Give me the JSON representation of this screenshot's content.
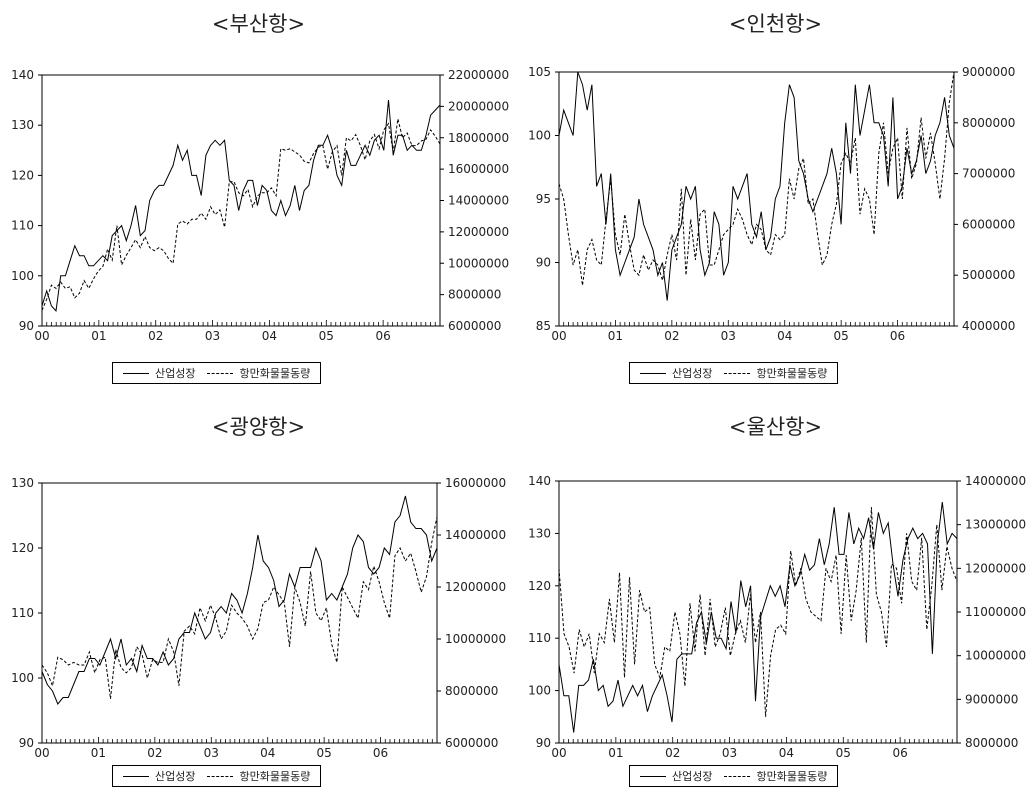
{
  "charts": [
    {
      "title": "<부산항>",
      "legend": {
        "s1": "산업성장",
        "s2": "항만화물물동량"
      },
      "chart_data": {
        "type": "line",
        "x_ticks": [
          "00",
          "01",
          "02",
          "03",
          "04",
          "05",
          "06"
        ],
        "left_axis": {
          "min": 90,
          "max": 140,
          "ticks": [
            "90",
            "100",
            "110",
            "120",
            "130",
            "140"
          ]
        },
        "right_axis": {
          "min": 6000000,
          "max": 22000000,
          "ticks": [
            "6000000",
            "8000000",
            "10000000",
            "12000000",
            "14000000",
            "16000000",
            "18000000",
            "20000000",
            "22000000"
          ]
        },
        "series": [
          {
            "name": "산업성장",
            "axis": "left",
            "style": "solid",
            "values": [
              94,
              97,
              94,
              93,
              100,
              100,
              103,
              106,
              104,
              104,
              102,
              102,
              103,
              104,
              103,
              108,
              109,
              110,
              107,
              110,
              114,
              108,
              109,
              115,
              117,
              118,
              118,
              120,
              122,
              126,
              123,
              125,
              120,
              120,
              116,
              124,
              126,
              127,
              126,
              127,
              119,
              118,
              113,
              117,
              119,
              119,
              114,
              118,
              117,
              113,
              112,
              115,
              112,
              114,
              118,
              113,
              117,
              118,
              123,
              126,
              126,
              128,
              125,
              120,
              118,
              125,
              122,
              122,
              124,
              126,
              124,
              127,
              128,
              125,
              135,
              124,
              128,
              128,
              125,
              126,
              125,
              125,
              128,
              132,
              133,
              134
            ]
          },
          {
            "name": "항만화물물동량",
            "axis": "right",
            "style": "dashed",
            "values": [
              7.0,
              7.7,
              8.6,
              8.4,
              8.8,
              8.4,
              8.5,
              7.8,
              8.1,
              8.9,
              8.4,
              9.0,
              9.5,
              9.8,
              10.9,
              10.2,
              12.4,
              9.9,
              10.5,
              11.0,
              11.5,
              11.0,
              11.7,
              11.0,
              10.8,
              11.0,
              10.8,
              10.3,
              10.0,
              12.5,
              12.7,
              12.5,
              12.8,
              12.8,
              13.2,
              12.8,
              13.6,
              13.1,
              13.4,
              12.3,
              15.2,
              15.2,
              14.5,
              14.3,
              14.7,
              13.6,
              14.3,
              14.5,
              14.5,
              14.8,
              14.3,
              17.3,
              17.2,
              17.3,
              17.1,
              16.9,
              16.5,
              16.4,
              17.0,
              17.4,
              17.5,
              16.0,
              17.1,
              17.5,
              15.6,
              18.0,
              17.8,
              18.2,
              17.5,
              16.6,
              17.8,
              18.2,
              17.3,
              18.5,
              18.9,
              17.1,
              19.2,
              18.0,
              18.3,
              17.5,
              17.5,
              17.8,
              17.9,
              18.5,
              18.1,
              17.6
            ]
          }
        ]
      }
    },
    {
      "title": "<인천항>",
      "legend": {
        "s1": "산업성장",
        "s2": "항만화물물동량"
      },
      "chart_data": {
        "type": "line",
        "x_ticks": [
          "00",
          "01",
          "02",
          "03",
          "04",
          "05",
          "06"
        ],
        "left_axis": {
          "min": 85,
          "max": 105,
          "ticks": [
            "85",
            "90",
            "95",
            "100",
            "105"
          ]
        },
        "right_axis": {
          "min": 4000000,
          "max": 9000000,
          "ticks": [
            "4000000",
            "5000000",
            "6000000",
            "7000000",
            "8000000",
            "9000000"
          ]
        },
        "series": [
          {
            "name": "산업성장",
            "axis": "left",
            "style": "solid",
            "values": [
              100,
              102,
              101,
              100,
              105,
              104,
              102,
              104,
              96,
              97,
              93,
              97,
              91,
              89,
              90,
              91,
              92,
              95,
              93,
              92,
              91,
              89,
              90,
              87,
              91,
              92,
              93,
              96,
              95,
              96,
              91,
              89,
              90,
              94,
              93,
              89,
              90,
              96,
              95,
              96,
              97,
              93,
              92,
              94,
              91,
              92,
              95,
              96,
              101,
              104,
              103,
              98,
              97,
              95,
              94,
              95,
              96,
              97,
              99,
              97,
              93,
              101,
              97,
              104,
              100,
              102,
              104,
              101,
              101,
              100,
              96,
              103,
              95,
              96,
              99,
              97,
              98,
              100,
              97,
              98,
              100,
              101,
              103,
              100,
              99
            ]
          },
          {
            "name": "항만화물물동량",
            "axis": "right",
            "style": "dashed",
            "values": [
              6.8,
              6.5,
              5.8,
              5.2,
              5.5,
              4.8,
              5.5,
              5.7,
              5.3,
              5.2,
              6.1,
              6.9,
              5.8,
              5.4,
              6.2,
              5.6,
              5.1,
              5.0,
              5.4,
              5.1,
              5.3,
              5.2,
              4.9,
              5.4,
              5.8,
              5.3,
              6.7,
              5.0,
              6.1,
              5.3,
              6.2,
              6.3,
              5.2,
              5.2,
              5.5,
              5.8,
              5.9,
              6.0,
              6.3,
              6.1,
              5.8,
              5.6,
              6.0,
              5.9,
              5.5,
              5.4,
              5.8,
              5.7,
              5.8,
              6.9,
              6.5,
              7.1,
              7.3,
              6.4,
              6.5,
              5.8,
              5.2,
              5.4,
              6.0,
              6.4,
              7.2,
              7.4,
              7.2,
              7.7,
              6.2,
              6.7,
              6.5,
              5.8,
              7.4,
              8.0,
              7.0,
              7.5,
              7.7,
              6.5,
              7.9,
              6.9,
              7.2,
              8.1,
              7.3,
              7.8,
              7.2,
              6.5,
              7.3,
              8.4,
              9.0
            ]
          }
        ]
      }
    },
    {
      "title": "<광양항>",
      "legend": {
        "s1": "산업성장",
        "s2": "항만화물물동량"
      },
      "chart_data": {
        "type": "line",
        "x_ticks": [
          "00",
          "01",
          "02",
          "03",
          "04",
          "05",
          "06"
        ],
        "left_axis": {
          "min": 90,
          "max": 130,
          "ticks": [
            "90",
            "100",
            "110",
            "120",
            "130"
          ]
        },
        "right_axis": {
          "min": 6000000,
          "max": 16000000,
          "ticks": [
            "6000000",
            "8000000",
            "10000000",
            "12000000",
            "14000000",
            "16000000"
          ]
        },
        "series": [
          {
            "name": "산업성장",
            "axis": "left",
            "style": "solid",
            "values": [
              101,
              99,
              98,
              96,
              97,
              97,
              99,
              101,
              101,
              103,
              103,
              102,
              104,
              106,
              103,
              106,
              102,
              103,
              101,
              105,
              103,
              103,
              102,
              104,
              102,
              103,
              106,
              107,
              107,
              110,
              108,
              106,
              107,
              110,
              111,
              110,
              113,
              112,
              110,
              113,
              117,
              122,
              118,
              117,
              115,
              111,
              112,
              116,
              114,
              117,
              117,
              117,
              120,
              118,
              112,
              113,
              112,
              114,
              116,
              120,
              122,
              121,
              117,
              116,
              117,
              120,
              119,
              124,
              125,
              128,
              124,
              123,
              123,
              122,
              118,
              120
            ]
          },
          {
            "name": "항만화물물동량",
            "axis": "right",
            "style": "dashed",
            "values": [
              9.0,
              8.7,
              8.2,
              9.3,
              9.2,
              9.0,
              9.1,
              9.0,
              9.0,
              9.5,
              8.7,
              9.2,
              9.3,
              7.7,
              9.6,
              8.9,
              8.7,
              8.9,
              9.7,
              9.4,
              8.5,
              9.2,
              9.1,
              9.1,
              10.0,
              9.5,
              8.2,
              10.3,
              10.5,
              10.2,
              11.2,
              10.7,
              11.3,
              10.8,
              10.0,
              10.3,
              11.3,
              11.0,
              10.8,
              10.5,
              10.0,
              10.4,
              11.4,
              11.5,
              12.0,
              11.7,
              11.4,
              9.7,
              12.0,
              11.4,
              10.5,
              12.6,
              11.0,
              10.7,
              11.2,
              9.8,
              9.1,
              12.0,
              11.6,
              11.2,
              10.8,
              12.2,
              11.9,
              12.8,
              12.2,
              11.4,
              10.8,
              13.2,
              13.5,
              13.0,
              13.3,
              12.6,
              11.8,
              12.4,
              13.7,
              14.7
            ]
          }
        ]
      }
    },
    {
      "title": "<울산항>",
      "legend": {
        "s1": "산업성장",
        "s2": "항만화물물동량"
      },
      "chart_data": {
        "type": "line",
        "x_ticks": [
          "00",
          "01",
          "02",
          "03",
          "04",
          "05",
          "06"
        ],
        "left_axis": {
          "min": 90,
          "max": 140,
          "ticks": [
            "90",
            "100",
            "110",
            "120",
            "130",
            "140"
          ]
        },
        "right_axis": {
          "min": 8000000,
          "max": 14000000,
          "ticks": [
            "8000000",
            "9000000",
            "10000000",
            "11000000",
            "12000000",
            "13000000",
            "14000000"
          ]
        },
        "series": [
          {
            "name": "산업성장",
            "axis": "left",
            "style": "solid",
            "values": [
              105,
              99,
              99,
              92,
              101,
              101,
              102,
              106,
              100,
              101,
              97,
              98,
              102,
              97,
              99,
              101,
              99,
              101,
              96,
              99,
              101,
              103,
              99,
              94,
              106,
              107,
              107,
              107,
              113,
              115,
              109,
              115,
              110,
              110,
              108,
              117,
              111,
              121,
              116,
              120,
              98,
              114,
              117,
              120,
              118,
              120,
              116,
              124,
              120,
              122,
              126,
              123,
              124,
              129,
              124,
              128,
              135,
              126,
              126,
              134,
              128,
              131,
              129,
              133,
              127,
              134,
              130,
              132,
              124,
              118,
              125,
              129,
              131,
              129,
              130,
              128,
              107,
              128,
              136,
              128,
              130,
              129
            ]
          },
          {
            "name": "항만화물물동량",
            "axis": "right",
            "style": "dashed",
            "values": [
              12.0,
              10.5,
              10.2,
              9.6,
              10.6,
              10.2,
              10.5,
              9.6,
              10.5,
              10.3,
              11.3,
              10.3,
              11.9,
              9.5,
              11.8,
              9.8,
              11.5,
              11.0,
              11.1,
              9.8,
              9.5,
              10.2,
              10.1,
              11.0,
              10.5,
              9.3,
              11.2,
              10.1,
              11.4,
              10.0,
              11.3,
              10.2,
              10.5,
              11.1,
              10.0,
              10.5,
              10.8,
              10.3,
              11.4,
              10.3,
              11.0,
              8.6,
              10.0,
              10.6,
              10.7,
              10.5,
              12.4,
              11.6,
              12.0,
              11.3,
              11.0,
              10.9,
              10.8,
              12.0,
              11.7,
              12.3,
              10.5,
              12.3,
              10.8,
              11.5,
              12.7,
              10.3,
              13.4,
              11.4,
              11.0,
              10.2,
              12.1,
              12.0,
              11.2,
              12.8,
              11.7,
              11.5,
              12.7,
              10.6,
              11.6,
              13.0,
              11.5,
              12.5,
              12.0,
              11.7
            ]
          }
        ]
      }
    }
  ]
}
